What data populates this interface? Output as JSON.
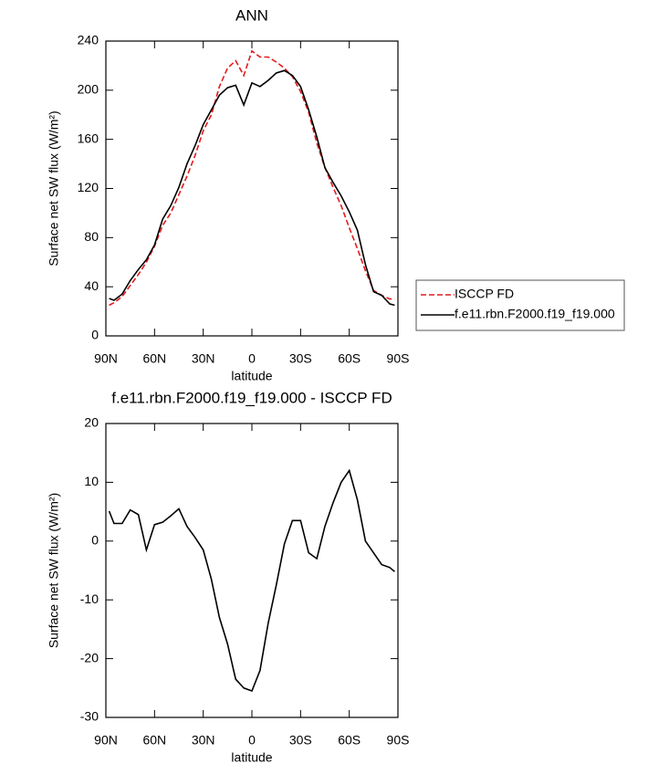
{
  "chart_data": [
    {
      "type": "line",
      "title": "ANN",
      "x_label": "latitude",
      "y_label": "Surface net SW flux (W/m²)",
      "x": [
        88,
        85,
        80,
        75,
        70,
        65,
        60,
        55,
        50,
        45,
        40,
        35,
        30,
        25,
        20,
        15,
        10,
        5,
        0,
        -5,
        -10,
        -15,
        -20,
        -25,
        -30,
        -35,
        -40,
        -45,
        -50,
        -55,
        -60,
        -65,
        -70,
        -75,
        -80,
        -85,
        -88
      ],
      "xlim": [
        90,
        -90
      ],
      "xticks": [
        {
          "value": 90,
          "label": "90N"
        },
        {
          "value": 60,
          "label": "60N"
        },
        {
          "value": 30,
          "label": "30N"
        },
        0,
        {
          "value": -30,
          "label": "30S"
        },
        {
          "value": -60,
          "label": "60S"
        },
        {
          "value": -90,
          "label": "90S"
        }
      ],
      "ylim": [
        0,
        240
      ],
      "yticks": [
        0,
        40,
        80,
        120,
        160,
        200,
        240
      ],
      "legend": "right",
      "series": [
        {
          "name": "ISCCP FD",
          "color": "#e41a1c",
          "dash": true,
          "values": [
            25,
            27,
            32,
            41,
            50,
            60,
            73,
            90,
            100,
            115,
            130,
            147,
            167,
            180,
            203,
            218,
            224,
            212,
            232,
            227,
            227,
            223,
            218,
            211,
            199,
            182,
            157,
            137,
            121,
            106,
            88,
            71,
            53,
            37,
            33,
            30,
            30
          ]
        },
        {
          "name": "f.e11.rbn.F2000.f19_f19.000",
          "color": "#000000",
          "dash": false,
          "values": [
            30.5,
            29,
            34,
            45,
            54,
            62,
            74,
            95,
            106,
            121,
            140,
            155,
            172,
            184,
            196,
            202,
            204,
            188,
            206,
            203,
            208,
            214,
            216,
            212,
            203,
            184,
            162,
            137,
            125,
            114,
            101,
            86,
            58,
            36,
            33,
            26,
            25
          ]
        }
      ]
    },
    {
      "type": "line",
      "title": "f.e11.rbn.F2000.f19_f19.000 - ISCCP FD",
      "x_label": "latitude",
      "y_label": "Surface net SW flux (W/m²)",
      "x": [
        88,
        85,
        80,
        75,
        70,
        65,
        60,
        55,
        50,
        45,
        40,
        35,
        30,
        25,
        20,
        15,
        10,
        5,
        0,
        -5,
        -10,
        -15,
        -20,
        -25,
        -30,
        -35,
        -40,
        -45,
        -50,
        -55,
        -60,
        -65,
        -70,
        -75,
        -80,
        -85,
        -88
      ],
      "xlim": [
        90,
        -90
      ],
      "xticks": [
        {
          "value": 90,
          "label": "90N"
        },
        {
          "value": 60,
          "label": "60N"
        },
        {
          "value": 30,
          "label": "30N"
        },
        0,
        {
          "value": -30,
          "label": "30S"
        },
        {
          "value": -60,
          "label": "60S"
        },
        {
          "value": -90,
          "label": "90S"
        }
      ],
      "ylim": [
        -30,
        20
      ],
      "yticks": [
        -30,
        -20,
        -10,
        0,
        10,
        20
      ],
      "color": "#000000",
      "values": [
        5.1,
        3,
        3,
        5.3,
        4.5,
        -1.5,
        2.8,
        3.2,
        4.3,
        5.5,
        2.5,
        0.6,
        -1.5,
        -6.5,
        -13,
        -17.5,
        -23.5,
        -25,
        -25.5,
        -22,
        -14,
        -7.5,
        -0.5,
        3.5,
        3.5,
        -2,
        -3,
        2.5,
        6.5,
        10,
        12,
        7,
        0,
        -2,
        -4,
        -4.5,
        -5.2
      ]
    }
  ]
}
